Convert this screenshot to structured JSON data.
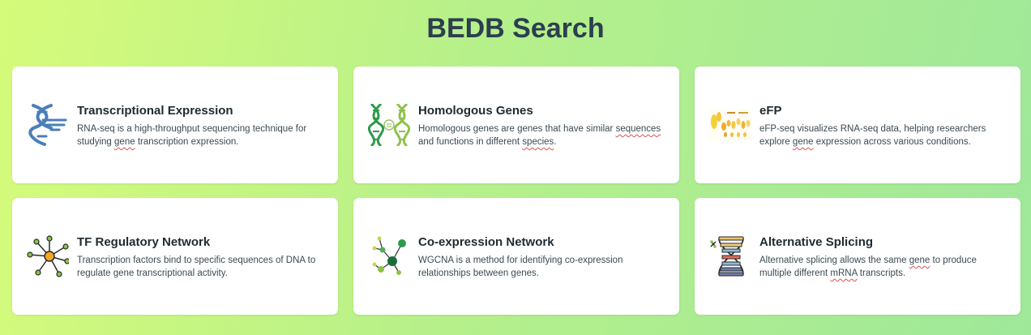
{
  "page": {
    "title": "BEDB Search"
  },
  "cards": [
    {
      "title": "Transcriptional Expression",
      "desc_parts": [
        "RNA-seq is a high-throughput sequencing technique for studying ",
        "gene",
        " transcription expression."
      ],
      "icon": "dna-helix-icon"
    },
    {
      "title": "Homologous Genes",
      "desc_parts": [
        "Homologous genes are genes that have similar ",
        "sequences",
        " and functions in different ",
        "species",
        "."
      ],
      "icon": "double-dna-icon"
    },
    {
      "title": "eFP",
      "desc_parts": [
        "eFP-seq visualizes RNA-seq data, helping researchers explore ",
        "gene",
        " expression across various conditions."
      ],
      "icon": "efp-thumbnail-icon"
    },
    {
      "title": "TF Regulatory Network",
      "desc_parts": [
        "Transcription factors bind to specific sequences of DNA to regulate gene transcriptional activity."
      ],
      "icon": "hub-network-icon"
    },
    {
      "title": "Co-expression Network",
      "desc_parts": [
        "WGCNA is a method for identifying co-expression relationships between genes."
      ],
      "icon": "graph-network-icon"
    },
    {
      "title": "Alternative Splicing",
      "desc_parts": [
        "Alternative splicing allows the same ",
        "gene",
        " to produce multiple different ",
        "mRNA",
        " transcripts."
      ],
      "icon": "splicing-icon"
    }
  ]
}
